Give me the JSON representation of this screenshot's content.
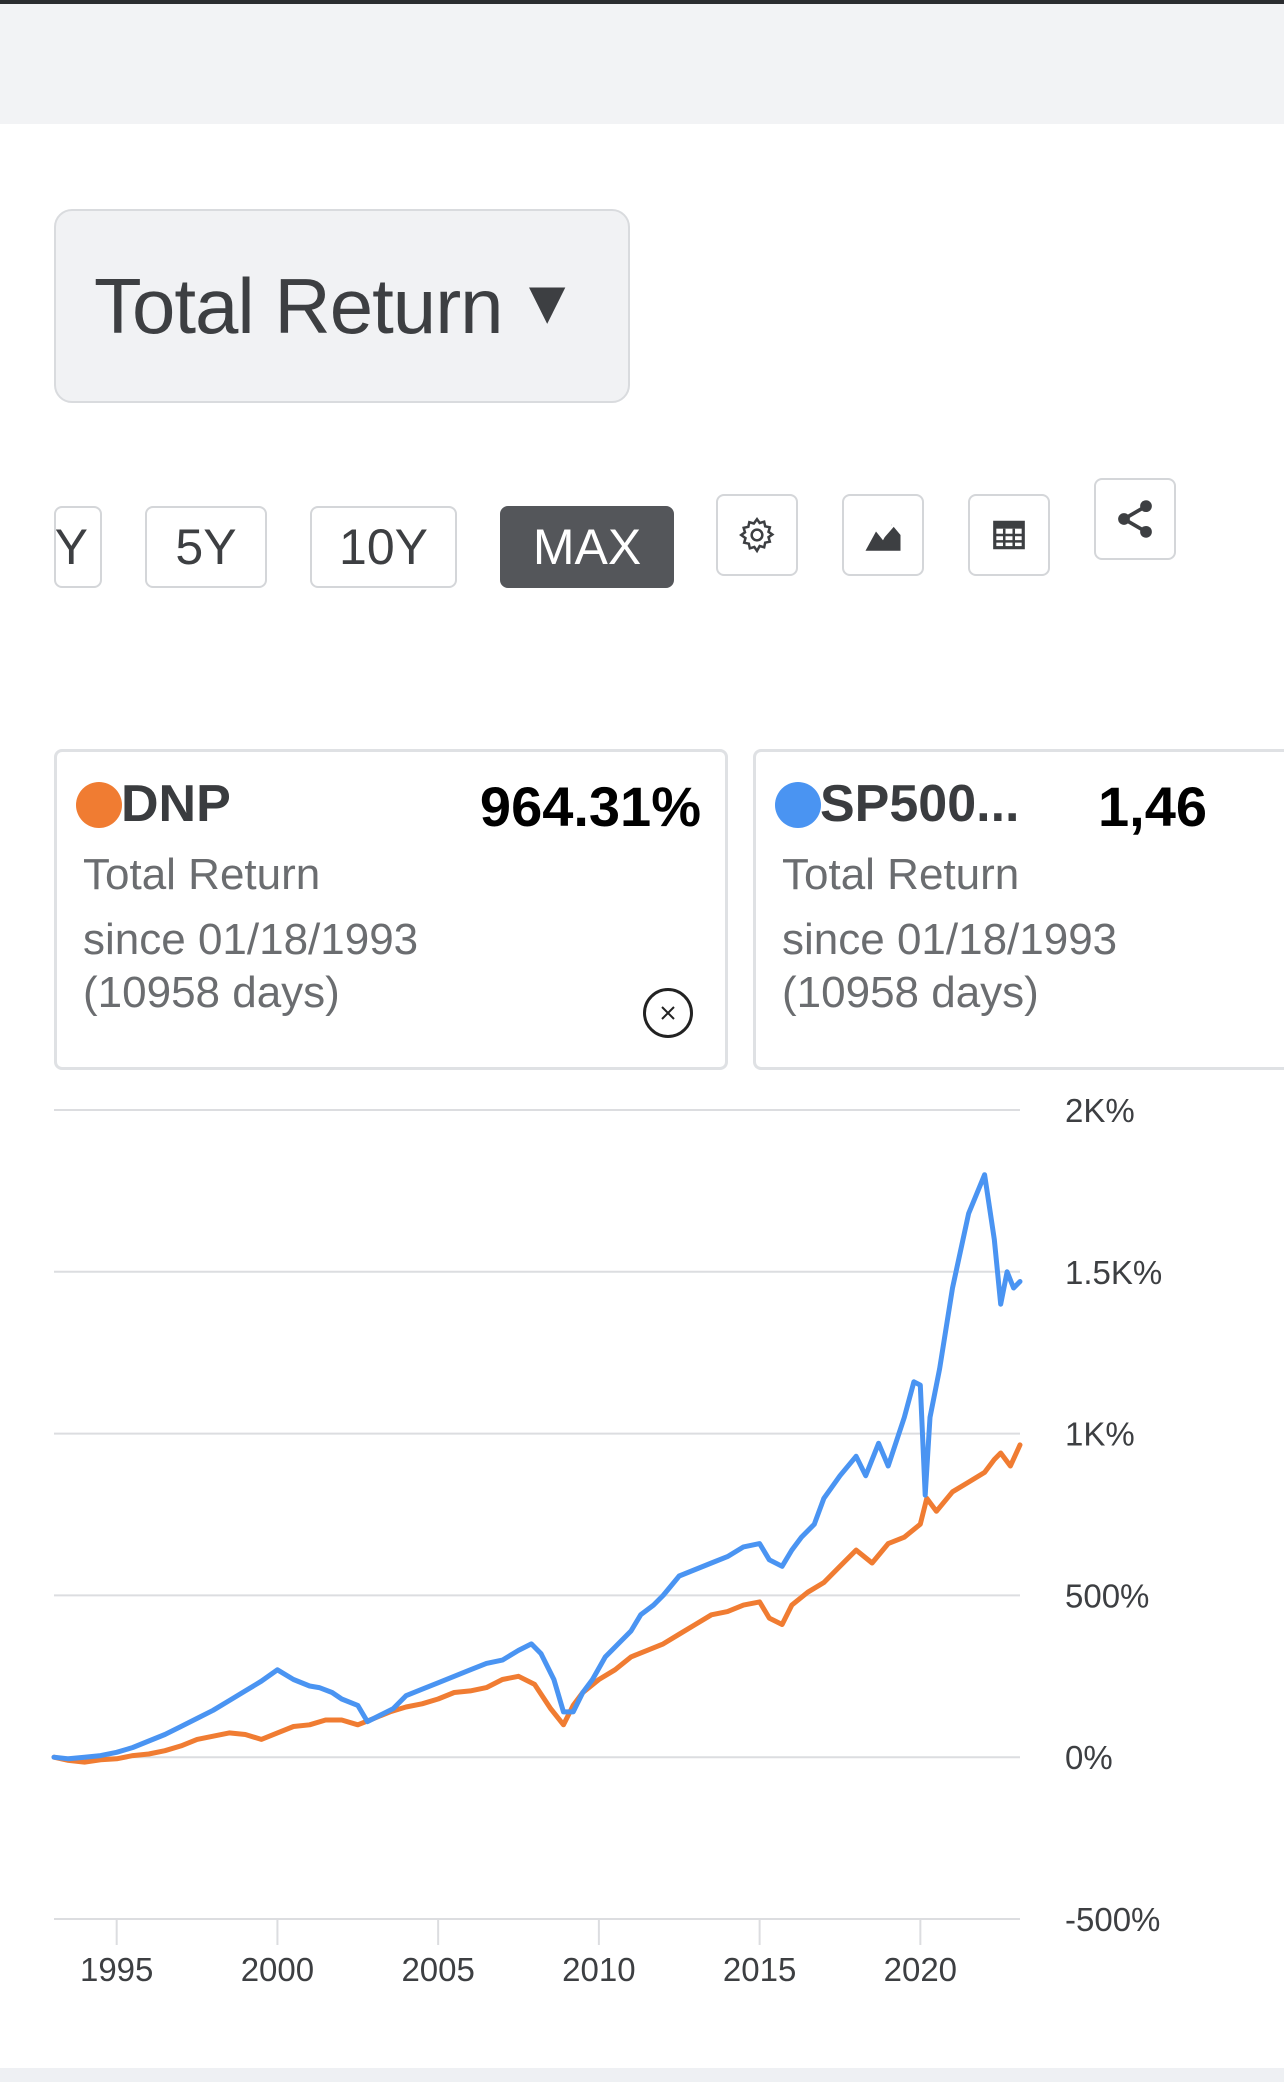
{
  "header": {
    "metric_label": "Total Return",
    "caret_icon": "caret-down-icon"
  },
  "range_buttons": [
    {
      "label": "Y",
      "active": false
    },
    {
      "label": "5Y",
      "active": false
    },
    {
      "label": "10Y",
      "active": false
    },
    {
      "label": "MAX",
      "active": true
    }
  ],
  "tools": [
    "gear-icon",
    "area-chart-icon",
    "table-icon",
    "share-icon"
  ],
  "cards": [
    {
      "ticker": "DNP",
      "value": "964.31%",
      "metric": "Total Return",
      "since": "since 01/18/1993",
      "days": "(10958 days)",
      "color": "#f07c32"
    },
    {
      "ticker": "SP500...",
      "value": "1,46",
      "metric": "Total Return",
      "since": "since 01/18/1993",
      "days": "(10958 days)",
      "color": "#4a94f2"
    }
  ],
  "chart_data": {
    "type": "line",
    "ylim": [
      -500,
      2000
    ],
    "yticks": [
      -500,
      0,
      500,
      1000,
      1500,
      2000
    ],
    "ytick_labels": [
      "-500%",
      "0%",
      "500%",
      "1K%",
      "1.5K%",
      "2K%"
    ],
    "xlim": [
      1993.05,
      2023.1
    ],
    "xticks": [
      1995,
      2000,
      2005,
      2010,
      2015,
      2020
    ],
    "xtick_labels": [
      "1995",
      "2000",
      "2005",
      "2010",
      "2015",
      "2020"
    ],
    "grid": true,
    "series": [
      {
        "name": "DNP",
        "color": "#f07c32",
        "x": [
          1993.05,
          1993.5,
          1994.0,
          1994.5,
          1995.0,
          1995.5,
          1996.0,
          1996.5,
          1997.0,
          1997.5,
          1998.0,
          1998.5,
          1999.0,
          1999.5,
          2000.0,
          2000.5,
          2001.0,
          2001.5,
          2002.0,
          2002.5,
          2003.0,
          2003.5,
          2004.0,
          2004.5,
          2005.0,
          2005.5,
          2006.0,
          2006.5,
          2007.0,
          2007.5,
          2008.0,
          2008.5,
          2008.9,
          2009.2,
          2009.5,
          2010.0,
          2010.5,
          2011.0,
          2011.5,
          2012.0,
          2012.5,
          2013.0,
          2013.5,
          2014.0,
          2014.5,
          2015.0,
          2015.3,
          2015.7,
          2016.0,
          2016.5,
          2017.0,
          2017.5,
          2018.0,
          2018.5,
          2019.0,
          2019.5,
          2020.0,
          2020.2,
          2020.5,
          2021.0,
          2021.5,
          2022.0,
          2022.3,
          2022.5,
          2022.8,
          2023.1
        ],
        "y": [
          0,
          -10,
          -15,
          -8,
          -5,
          5,
          10,
          20,
          35,
          55,
          65,
          75,
          70,
          55,
          75,
          95,
          100,
          115,
          115,
          100,
          120,
          140,
          155,
          165,
          180,
          200,
          205,
          215,
          240,
          250,
          225,
          150,
          100,
          160,
          200,
          240,
          270,
          310,
          330,
          350,
          380,
          410,
          440,
          450,
          470,
          480,
          430,
          410,
          470,
          510,
          540,
          590,
          640,
          600,
          660,
          680,
          720,
          800,
          760,
          820,
          850,
          880,
          920,
          940,
          900,
          965
        ]
      },
      {
        "name": "SP500...",
        "color": "#4a94f2",
        "x": [
          1993.05,
          1993.5,
          1994.0,
          1994.5,
          1995.0,
          1995.5,
          1996.0,
          1996.5,
          1997.0,
          1997.5,
          1998.0,
          1998.5,
          1999.0,
          1999.5,
          2000.0,
          2000.5,
          2001.0,
          2001.3,
          2001.7,
          2002.0,
          2002.5,
          2002.8,
          2003.2,
          2003.6,
          2004.0,
          2004.5,
          2005.0,
          2005.5,
          2006.0,
          2006.5,
          2007.0,
          2007.5,
          2007.9,
          2008.2,
          2008.6,
          2008.9,
          2009.2,
          2009.5,
          2009.8,
          2010.2,
          2010.6,
          2011.0,
          2011.3,
          2011.7,
          2012.0,
          2012.5,
          2013.0,
          2013.5,
          2014.0,
          2014.5,
          2015.0,
          2015.3,
          2015.7,
          2016.0,
          2016.3,
          2016.7,
          2017.0,
          2017.5,
          2018.0,
          2018.3,
          2018.7,
          2019.0,
          2019.5,
          2019.8,
          2020.0,
          2020.15,
          2020.3,
          2020.6,
          2021.0,
          2021.5,
          2022.0,
          2022.3,
          2022.5,
          2022.7,
          2022.9,
          2023.1
        ],
        "y": [
          0,
          -5,
          0,
          5,
          15,
          30,
          50,
          70,
          95,
          120,
          145,
          175,
          205,
          235,
          270,
          240,
          220,
          215,
          200,
          180,
          160,
          110,
          130,
          150,
          190,
          210,
          230,
          250,
          270,
          290,
          300,
          330,
          350,
          320,
          240,
          140,
          140,
          200,
          240,
          310,
          350,
          390,
          440,
          470,
          500,
          560,
          580,
          600,
          620,
          650,
          660,
          610,
          590,
          640,
          680,
          720,
          800,
          870,
          930,
          870,
          970,
          900,
          1050,
          1160,
          1150,
          810,
          1050,
          1200,
          1450,
          1680,
          1800,
          1600,
          1400,
          1500,
          1450,
          1470
        ]
      }
    ]
  }
}
